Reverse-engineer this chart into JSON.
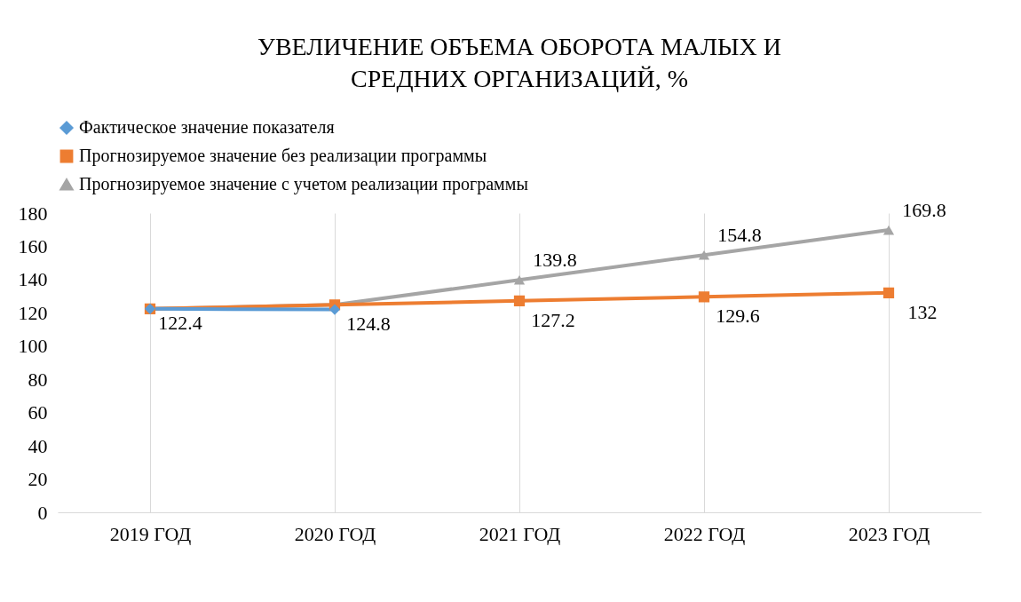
{
  "chart_data": {
    "type": "line",
    "title": "УВЕЛИЧЕНИЕ ОБЪЕМА ОБОРОТА МАЛЫХ И СРЕДНИХ ОРГАНИЗАЦИЙ, %",
    "categories": [
      "2019 ГОД",
      "2020 ГОД",
      "2021 ГОД",
      "2022 ГОД",
      "2023 ГОД"
    ],
    "series": [
      {
        "name": "Фактическое значение показателя",
        "color": "#5b9bd5",
        "marker": "diamond",
        "values": [
          122.4,
          122,
          null,
          null,
          null
        ],
        "value_labels": [
          "122.4",
          null,
          null,
          null,
          null
        ]
      },
      {
        "name": "Прогнозируемое значение без реализации программы",
        "color": "#ed7d31",
        "marker": "square",
        "values": [
          122.4,
          124.8,
          127.2,
          129.6,
          132
        ],
        "value_labels": [
          null,
          "124.8",
          "127.2",
          "129.6",
          "132"
        ]
      },
      {
        "name": "Прогнозируемое значение с учетом реализации программы",
        "color": "#a5a5a5",
        "marker": "triangle",
        "values": [
          122.4,
          124.8,
          139.8,
          154.8,
          169.8
        ],
        "value_labels": [
          null,
          null,
          "139.8",
          "154.8",
          "169.8"
        ]
      }
    ],
    "ylim": [
      0,
      180
    ],
    "yticks": [
      0,
      20,
      40,
      60,
      80,
      100,
      120,
      140,
      160,
      180
    ],
    "grid": "x",
    "legend": "top",
    "line_style": "solid"
  }
}
